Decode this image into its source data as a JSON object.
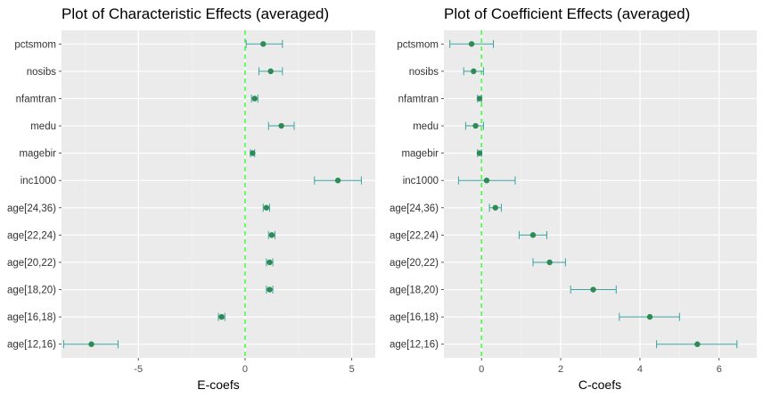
{
  "chart_data": [
    {
      "type": "scatter",
      "title": "Plot of Characteristic Effects (averaged)",
      "xlabel": "E-coefs",
      "ylabel": "",
      "xlim": [
        -8.6,
        6.1
      ],
      "xticks": [
        -5,
        0,
        5
      ],
      "grid": true,
      "legend": "none",
      "reference_line": 0,
      "categories": [
        "pctsmom",
        "nosibs",
        "nfamtran",
        "medu",
        "magebir",
        "inc1000",
        "age[24,36)",
        "age[22,24)",
        "age[20,22)",
        "age[18,20)",
        "age[16,18)",
        "age[12,16)"
      ],
      "estimates": [
        0.85,
        1.2,
        0.45,
        1.7,
        0.35,
        4.35,
        1.0,
        1.25,
        1.15,
        1.15,
        -1.1,
        -7.2
      ],
      "lower": [
        0.05,
        0.65,
        0.3,
        1.1,
        0.25,
        3.25,
        0.85,
        1.1,
        1.0,
        1.0,
        -1.25,
        -8.5
      ],
      "upper": [
        1.75,
        1.75,
        0.6,
        2.3,
        0.45,
        5.45,
        1.15,
        1.4,
        1.3,
        1.3,
        -0.95,
        -5.95
      ]
    },
    {
      "type": "scatter",
      "title": "Plot of Coefficient Effects (averaged)",
      "xlabel": "C-coefs",
      "ylabel": "",
      "xlim": [
        -0.95,
        6.95
      ],
      "xticks": [
        0,
        2,
        4,
        6
      ],
      "grid": true,
      "legend": "none",
      "reference_line": 0,
      "categories": [
        "pctsmom",
        "nosibs",
        "nfamtran",
        "medu",
        "magebir",
        "inc1000",
        "age[24,36)",
        "age[22,24)",
        "age[20,22)",
        "age[18,20)",
        "age[16,18)",
        "age[12,16)"
      ],
      "estimates": [
        -0.25,
        -0.2,
        -0.05,
        -0.15,
        -0.05,
        0.13,
        0.35,
        1.3,
        1.72,
        2.82,
        4.25,
        5.45
      ],
      "lower": [
        -0.8,
        -0.45,
        -0.1,
        -0.4,
        -0.1,
        -0.58,
        0.2,
        0.95,
        1.3,
        2.25,
        3.48,
        4.42
      ],
      "upper": [
        0.3,
        0.05,
        0.0,
        0.05,
        0.0,
        0.85,
        0.5,
        1.65,
        2.12,
        3.4,
        5.0,
        6.45
      ]
    }
  ],
  "colors": {
    "panel_background": "#ebebeb",
    "grid_major": "#ffffff",
    "grid_minor": "#f5f5f5",
    "point": "#2e8b57",
    "errorbar": "#3aa3a0",
    "reference_line": "#33ff33",
    "tick_text": "#4d4d4d"
  }
}
